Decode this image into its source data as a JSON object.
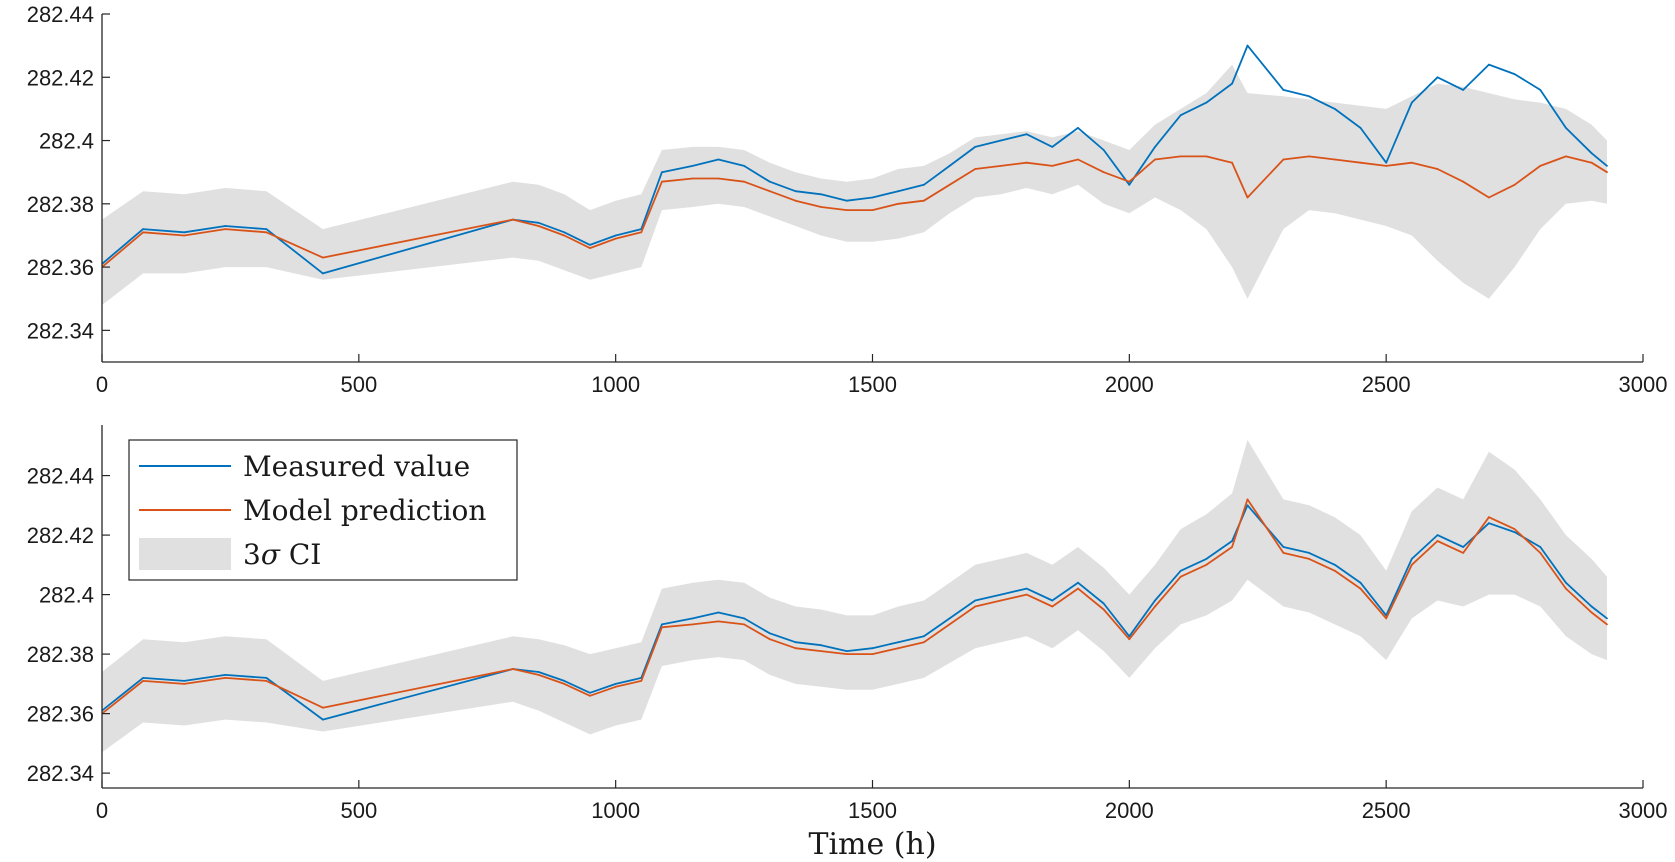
{
  "chart_data": [
    {
      "type": "line",
      "panel": "top",
      "xlabel": "",
      "ylabel": "",
      "xlim": [
        0,
        3000
      ],
      "ylim": [
        282.33,
        282.44
      ],
      "xticks": [
        0,
        500,
        1000,
        1500,
        2000,
        2500,
        3000
      ],
      "xtick_labels": [
        "0",
        "500",
        "1000",
        "1500",
        "2000",
        "2500",
        "3000"
      ],
      "yticks": [
        282.34,
        282.36,
        282.38,
        282.4,
        282.42,
        282.44
      ],
      "ytick_labels": [
        "282.34",
        "282.36",
        "282.38",
        "282.4",
        "282.42",
        "282.44"
      ],
      "x": [
        0,
        80,
        160,
        240,
        320,
        430,
        800,
        850,
        900,
        950,
        1000,
        1050,
        1090,
        1150,
        1200,
        1250,
        1300,
        1350,
        1400,
        1450,
        1500,
        1550,
        1600,
        1650,
        1700,
        1750,
        1800,
        1850,
        1900,
        1950,
        2000,
        2050,
        2100,
        2150,
        2200,
        2230,
        2300,
        2350,
        2400,
        2450,
        2500,
        2550,
        2600,
        2650,
        2700,
        2750,
        2800,
        2850,
        2900,
        2930
      ],
      "series": [
        {
          "name": "Measured value",
          "color": "#0072BD",
          "values": [
            282.361,
            282.372,
            282.371,
            282.373,
            282.372,
            282.358,
            282.375,
            282.374,
            282.371,
            282.367,
            282.37,
            282.372,
            282.39,
            282.392,
            282.394,
            282.392,
            282.387,
            282.384,
            282.383,
            282.381,
            282.382,
            282.384,
            282.386,
            282.392,
            282.398,
            282.4,
            282.402,
            282.398,
            282.404,
            282.397,
            282.386,
            282.398,
            282.408,
            282.412,
            282.418,
            282.43,
            282.416,
            282.414,
            282.41,
            282.404,
            282.393,
            282.412,
            282.42,
            282.416,
            282.424,
            282.421,
            282.416,
            282.404,
            282.396,
            282.392
          ]
        },
        {
          "name": "Model prediction",
          "color": "#D95319",
          "values": [
            282.36,
            282.371,
            282.37,
            282.372,
            282.371,
            282.363,
            282.375,
            282.373,
            282.37,
            282.366,
            282.369,
            282.371,
            282.387,
            282.388,
            282.388,
            282.387,
            282.384,
            282.381,
            282.379,
            282.378,
            282.378,
            282.38,
            282.381,
            282.386,
            282.391,
            282.392,
            282.393,
            282.392,
            282.394,
            282.39,
            282.387,
            282.394,
            282.395,
            282.395,
            282.393,
            282.382,
            282.394,
            282.395,
            282.394,
            282.393,
            282.392,
            282.393,
            282.391,
            282.387,
            282.382,
            282.386,
            282.392,
            282.395,
            282.393,
            282.39
          ]
        }
      ],
      "ci": {
        "name": "3σ CI",
        "color": "#E0E0E0",
        "lower": [
          282.348,
          282.358,
          282.358,
          282.36,
          282.36,
          282.356,
          282.363,
          282.362,
          282.359,
          282.356,
          282.358,
          282.36,
          282.378,
          282.379,
          282.38,
          282.379,
          282.376,
          282.373,
          282.37,
          282.368,
          282.368,
          282.369,
          282.371,
          282.377,
          282.382,
          282.383,
          282.385,
          282.383,
          282.386,
          282.38,
          282.377,
          282.382,
          282.378,
          282.372,
          282.36,
          282.35,
          282.372,
          282.378,
          282.377,
          282.375,
          282.373,
          282.37,
          282.362,
          282.355,
          282.35,
          282.36,
          282.372,
          282.38,
          282.381,
          282.38
        ],
        "upper": [
          282.375,
          282.384,
          282.383,
          282.385,
          282.384,
          282.372,
          282.387,
          282.386,
          282.383,
          282.378,
          282.381,
          282.383,
          282.397,
          282.398,
          282.398,
          282.397,
          282.393,
          282.39,
          282.388,
          282.387,
          282.388,
          282.391,
          282.392,
          282.396,
          282.401,
          282.402,
          282.403,
          282.401,
          282.403,
          282.4,
          282.397,
          282.405,
          282.41,
          282.415,
          282.424,
          282.415,
          282.414,
          282.413,
          282.412,
          282.411,
          282.41,
          282.414,
          282.418,
          282.417,
          282.415,
          282.413,
          282.412,
          282.41,
          282.405,
          282.4
        ]
      }
    },
    {
      "type": "line",
      "panel": "bottom",
      "xlabel": "Time (h)",
      "ylabel": "",
      "xlim": [
        0,
        3000
      ],
      "ylim": [
        282.335,
        282.457
      ],
      "xticks": [
        0,
        500,
        1000,
        1500,
        2000,
        2500,
        3000
      ],
      "xtick_labels": [
        "0",
        "500",
        "1000",
        "1500",
        "2000",
        "2500",
        "3000"
      ],
      "yticks": [
        282.34,
        282.36,
        282.38,
        282.4,
        282.42,
        282.44
      ],
      "ytick_labels": [
        "282.34",
        "282.36",
        "282.38",
        "282.4",
        "282.42",
        "282.44"
      ],
      "x": [
        0,
        80,
        160,
        240,
        320,
        430,
        800,
        850,
        900,
        950,
        1000,
        1050,
        1090,
        1150,
        1200,
        1250,
        1300,
        1350,
        1400,
        1450,
        1500,
        1550,
        1600,
        1650,
        1700,
        1750,
        1800,
        1850,
        1900,
        1950,
        2000,
        2050,
        2100,
        2150,
        2200,
        2230,
        2300,
        2350,
        2400,
        2450,
        2500,
        2550,
        2600,
        2650,
        2700,
        2750,
        2800,
        2850,
        2900,
        2930
      ],
      "series": [
        {
          "name": "Measured value",
          "color": "#0072BD",
          "values": [
            282.361,
            282.372,
            282.371,
            282.373,
            282.372,
            282.358,
            282.375,
            282.374,
            282.371,
            282.367,
            282.37,
            282.372,
            282.39,
            282.392,
            282.394,
            282.392,
            282.387,
            282.384,
            282.383,
            282.381,
            282.382,
            282.384,
            282.386,
            282.392,
            282.398,
            282.4,
            282.402,
            282.398,
            282.404,
            282.397,
            282.386,
            282.398,
            282.408,
            282.412,
            282.418,
            282.43,
            282.416,
            282.414,
            282.41,
            282.404,
            282.393,
            282.412,
            282.42,
            282.416,
            282.424,
            282.421,
            282.416,
            282.404,
            282.396,
            282.392
          ]
        },
        {
          "name": "Model prediction",
          "color": "#D95319",
          "values": [
            282.36,
            282.371,
            282.37,
            282.372,
            282.371,
            282.362,
            282.375,
            282.373,
            282.37,
            282.366,
            282.369,
            282.371,
            282.389,
            282.39,
            282.391,
            282.39,
            282.385,
            282.382,
            282.381,
            282.38,
            282.38,
            282.382,
            282.384,
            282.39,
            282.396,
            282.398,
            282.4,
            282.396,
            282.402,
            282.395,
            282.385,
            282.396,
            282.406,
            282.41,
            282.416,
            282.432,
            282.414,
            282.412,
            282.408,
            282.402,
            282.392,
            282.41,
            282.418,
            282.414,
            282.426,
            282.422,
            282.414,
            282.402,
            282.394,
            282.39
          ]
        }
      ],
      "ci": {
        "name": "3σ CI",
        "color": "#E0E0E0",
        "lower": [
          282.347,
          282.357,
          282.356,
          282.358,
          282.357,
          282.354,
          282.364,
          282.361,
          282.357,
          282.353,
          282.356,
          282.358,
          282.376,
          282.378,
          282.379,
          282.378,
          282.373,
          282.37,
          282.369,
          282.368,
          282.368,
          282.37,
          282.372,
          282.377,
          282.382,
          282.384,
          282.386,
          282.382,
          282.388,
          282.381,
          282.372,
          282.382,
          282.39,
          282.393,
          282.398,
          282.405,
          282.396,
          282.394,
          282.39,
          282.386,
          282.378,
          282.392,
          282.398,
          282.396,
          282.4,
          282.4,
          282.396,
          282.386,
          282.38,
          282.378
        ],
        "upper": [
          282.374,
          282.385,
          282.384,
          282.386,
          282.385,
          282.371,
          282.386,
          282.385,
          282.383,
          282.38,
          282.382,
          282.384,
          282.402,
          282.404,
          282.405,
          282.404,
          282.399,
          282.396,
          282.395,
          282.393,
          282.393,
          282.396,
          282.398,
          282.404,
          282.41,
          282.412,
          282.414,
          282.41,
          282.416,
          282.409,
          282.4,
          282.41,
          282.422,
          282.427,
          282.434,
          282.452,
          282.432,
          282.43,
          282.426,
          282.42,
          282.408,
          282.428,
          282.436,
          282.432,
          282.448,
          282.442,
          282.432,
          282.42,
          282.412,
          282.406
        ]
      }
    }
  ],
  "legend": {
    "entries": [
      {
        "label": "Measured value",
        "kind": "line",
        "color": "#0072BD"
      },
      {
        "label": "Model prediction",
        "kind": "line",
        "color": "#D95319"
      },
      {
        "label_prefix": "3",
        "label_symbol": "σ",
        "label_suffix": " CI",
        "kind": "patch",
        "color": "#E0E0E0"
      }
    ],
    "placement": "top-left of bottom panel"
  }
}
